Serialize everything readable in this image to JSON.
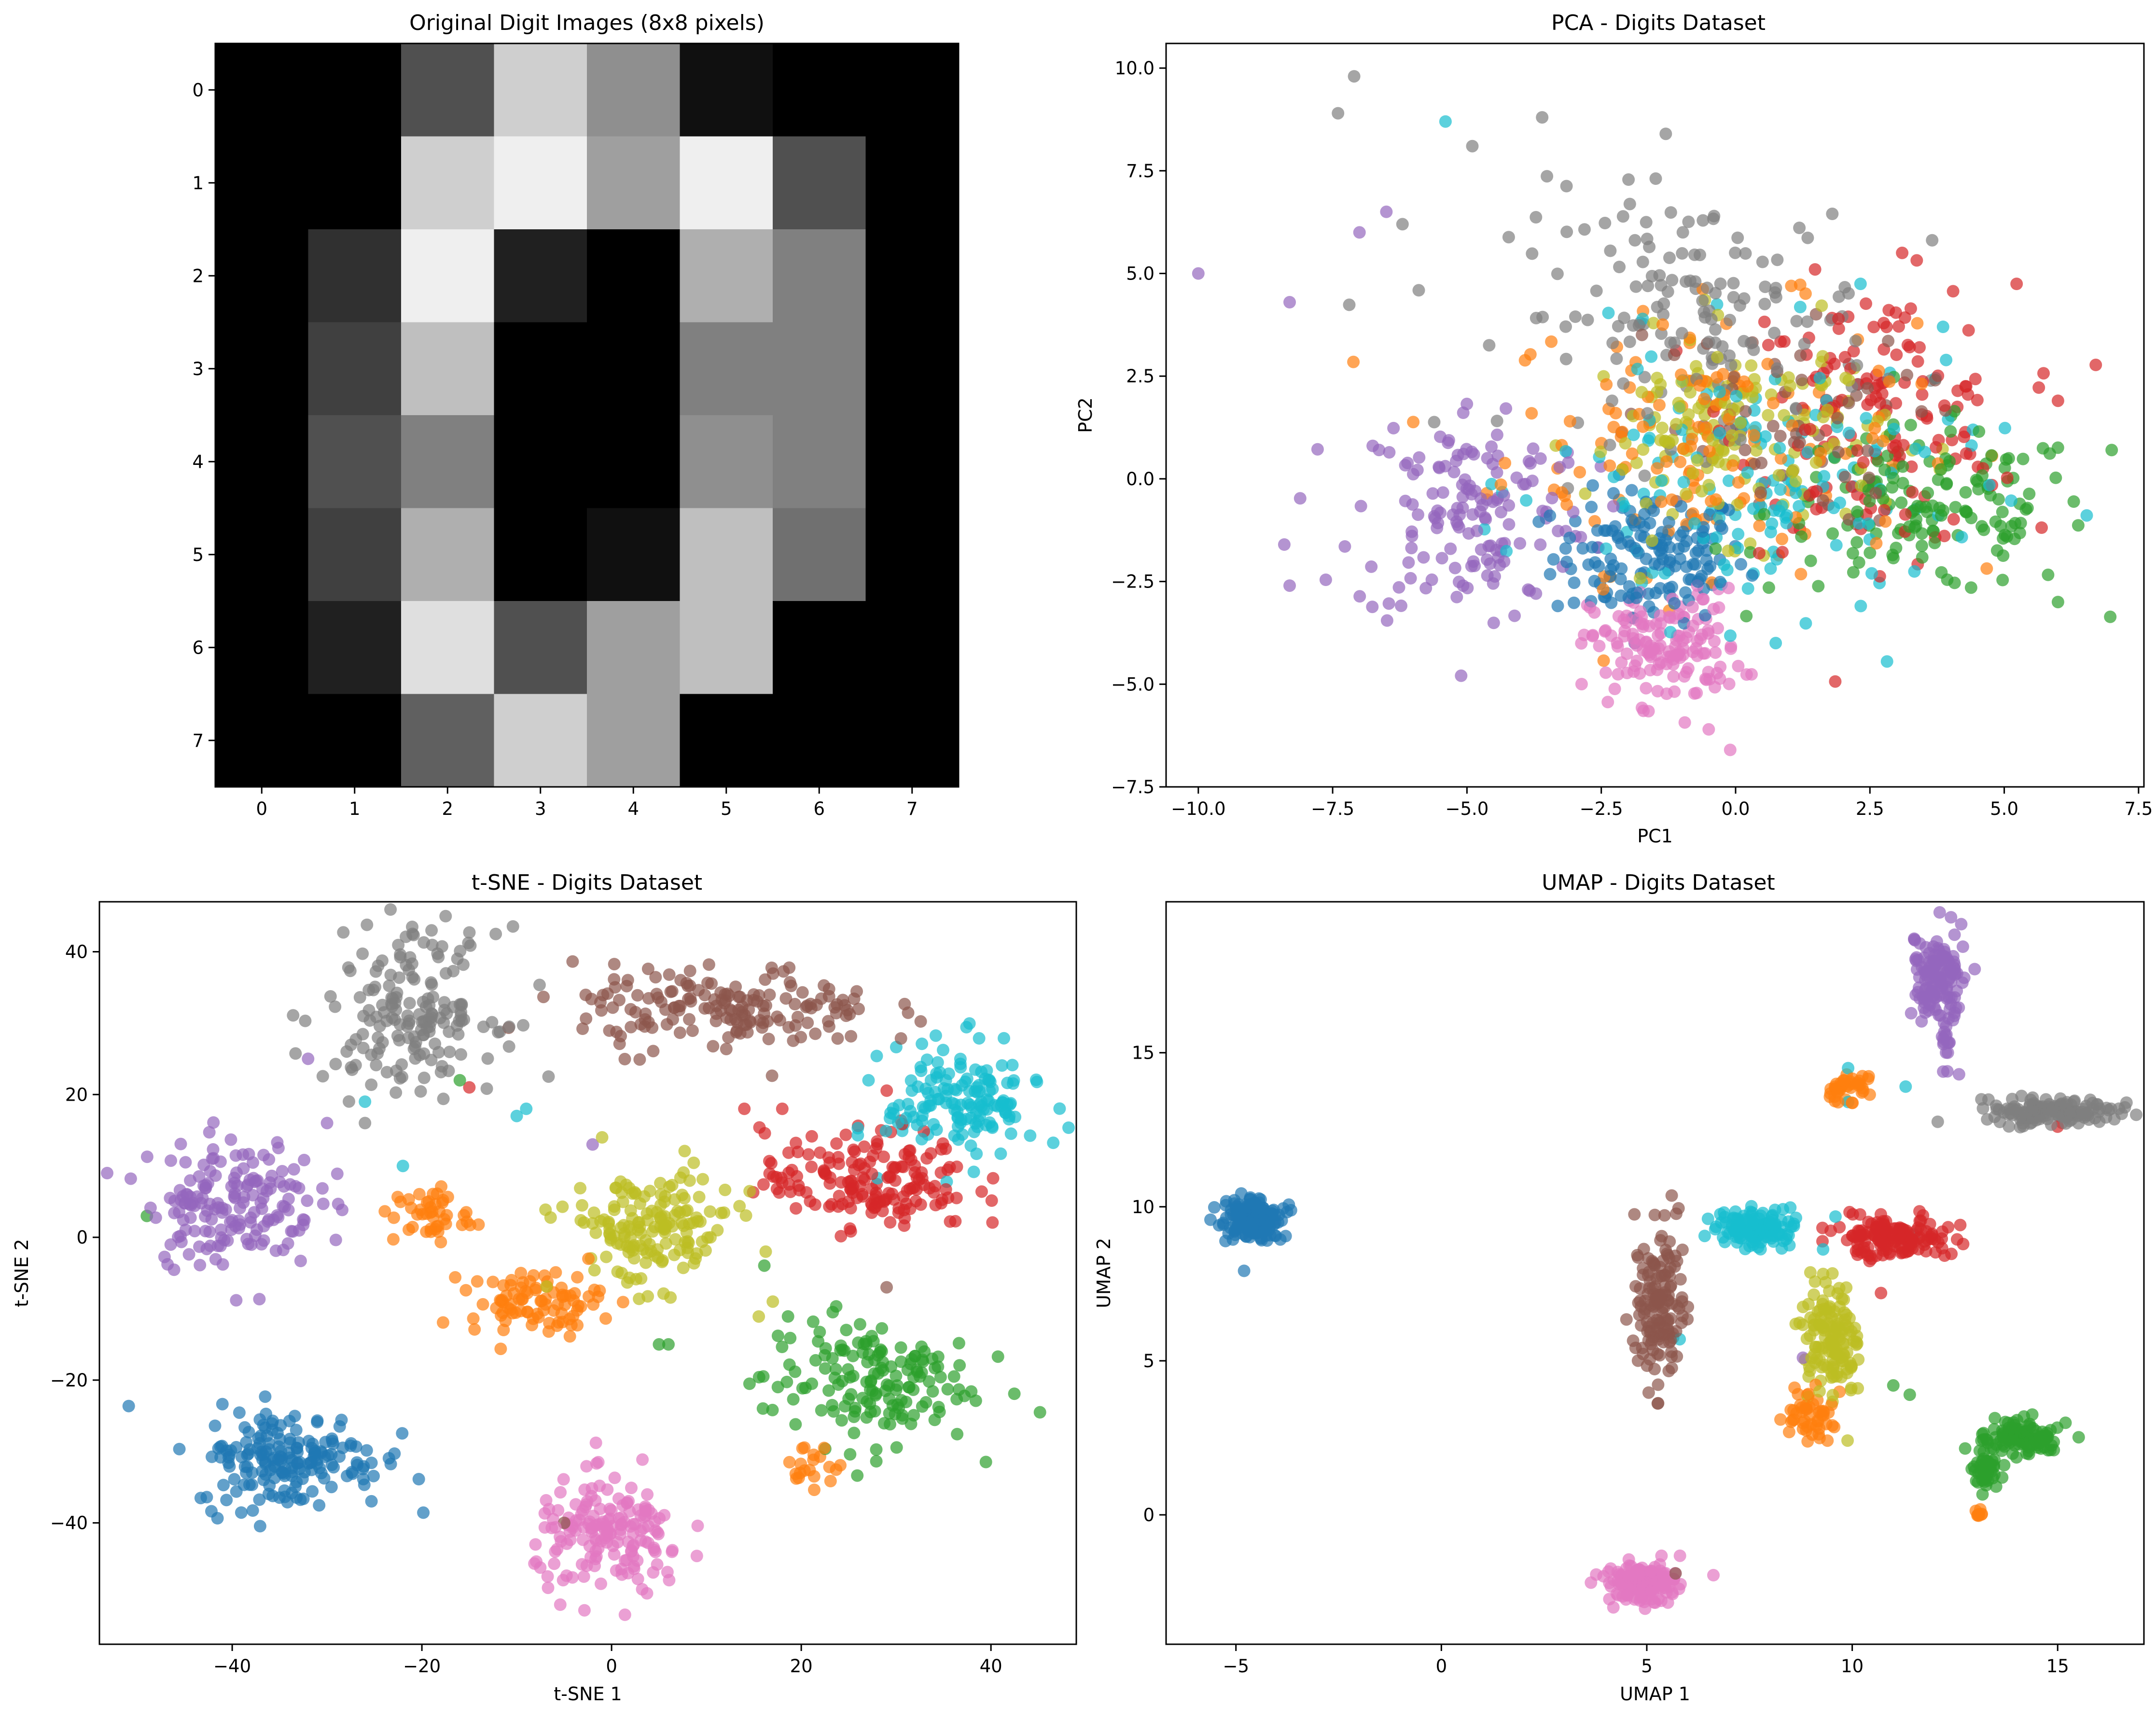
{
  "figure": {
    "palette": [
      "#1f77b4",
      "#ff7f0e",
      "#2ca02c",
      "#d62728",
      "#9467bd",
      "#8c564b",
      "#e377c2",
      "#7f7f7f",
      "#bcbd22",
      "#17becf"
    ],
    "point_alpha": 0.7
  },
  "chart_data": [
    {
      "type": "heatmap",
      "title": "Original Digit Images (8x8 pixels)",
      "colormap": "gray",
      "x_ticks": [
        "0",
        "1",
        "2",
        "3",
        "4",
        "5",
        "6",
        "7"
      ],
      "y_ticks": [
        "0",
        "1",
        "2",
        "3",
        "4",
        "5",
        "6",
        "7"
      ],
      "vmin": 0,
      "vmax": 16,
      "values": [
        [
          0,
          0,
          5,
          13,
          9,
          1,
          0,
          0
        ],
        [
          0,
          0,
          13,
          15,
          10,
          15,
          5,
          0
        ],
        [
          0,
          3,
          15,
          2,
          0,
          11,
          8,
          0
        ],
        [
          0,
          4,
          12,
          0,
          0,
          8,
          8,
          0
        ],
        [
          0,
          5,
          8,
          0,
          0,
          9,
          8,
          0
        ],
        [
          0,
          4,
          11,
          0,
          1,
          12,
          7,
          0
        ],
        [
          0,
          2,
          14,
          5,
          10,
          12,
          0,
          0
        ],
        [
          0,
          0,
          6,
          13,
          10,
          0,
          0,
          0
        ]
      ]
    },
    {
      "type": "scatter",
      "title": "PCA - Digits Dataset",
      "xlabel": "PC1",
      "ylabel": "PC2",
      "xlim": [
        -10.6,
        7.6
      ],
      "ylim": [
        -7.5,
        10.6
      ],
      "x_ticks": [
        -10,
        -7.5,
        -5,
        -2.5,
        0,
        2.5,
        5,
        7.5
      ],
      "x_tick_labels": [
        "−10.0",
        "−7.5",
        "−5.0",
        "−2.5",
        "0.0",
        "2.5",
        "5.0",
        "7.5"
      ],
      "y_ticks": [
        -7.5,
        -5,
        -2.5,
        0,
        2.5,
        5,
        7.5,
        10
      ],
      "y_tick_labels": [
        "−7.5",
        "−5.0",
        "−2.5",
        "0.0",
        "2.5",
        "5.0",
        "7.5",
        "10.0"
      ],
      "clusters": [
        {
          "label": 0,
          "center": [
            -1.6,
            -1.9
          ],
          "spread": [
            0.9,
            0.8
          ],
          "count": 150
        },
        {
          "label": 1,
          "center": [
            -0.5,
            1.0
          ],
          "spread": [
            1.9,
            1.6
          ],
          "count": 150
        },
        {
          "label": 2,
          "center": [
            3.6,
            -0.8
          ],
          "spread": [
            1.5,
            1.0
          ],
          "count": 150
        },
        {
          "label": 3,
          "center": [
            2.6,
            1.5
          ],
          "spread": [
            1.3,
            1.6
          ],
          "count": 150
        },
        {
          "label": 4,
          "center": [
            -4.9,
            -0.8
          ],
          "spread": [
            1.1,
            1.4
          ],
          "count": 150
        },
        {
          "label": 5,
          "center": [
            0.6,
            1.2
          ],
          "spread": [
            1.4,
            1.2
          ],
          "count": 60
        },
        {
          "label": 6,
          "center": [
            -1.3,
            -4.1
          ],
          "spread": [
            0.7,
            0.7
          ],
          "count": 150
        },
        {
          "label": 7,
          "center": [
            -0.8,
            4.0
          ],
          "spread": [
            1.7,
            1.5
          ],
          "count": 150
        },
        {
          "label": 8,
          "center": [
            0.0,
            1.1
          ],
          "spread": [
            1.4,
            1.2
          ],
          "count": 150
        },
        {
          "label": 9,
          "center": [
            0.6,
            -0.2
          ],
          "spread": [
            2.0,
            1.7
          ],
          "count": 150
        }
      ],
      "extra_points": [
        {
          "label": 4,
          "x": -10.0,
          "y": 5.0
        },
        {
          "label": 4,
          "x": -8.3,
          "y": 4.3
        },
        {
          "label": 4,
          "x": -8.4,
          "y": -1.6
        },
        {
          "label": 4,
          "x": -8.3,
          "y": -2.6
        },
        {
          "label": 4,
          "x": -7.0,
          "y": 6.0
        },
        {
          "label": 4,
          "x": -6.5,
          "y": 6.5
        },
        {
          "label": 7,
          "x": -7.4,
          "y": 8.9
        },
        {
          "label": 7,
          "x": -7.1,
          "y": 9.8
        },
        {
          "label": 7,
          "x": -6.2,
          "y": 6.2
        },
        {
          "label": 7,
          "x": -4.9,
          "y": 8.1
        },
        {
          "label": 7,
          "x": -3.6,
          "y": 8.8
        },
        {
          "label": 7,
          "x": -1.3,
          "y": 8.4
        },
        {
          "label": 9,
          "x": -5.4,
          "y": 8.7
        },
        {
          "label": 6,
          "x": -0.1,
          "y": -6.6
        },
        {
          "label": 6,
          "x": -0.5,
          "y": -6.1
        },
        {
          "label": 2,
          "x": 7.0,
          "y": 0.7
        },
        {
          "label": 2,
          "x": 6.0,
          "y": -3.0
        },
        {
          "label": 3,
          "x": 6.0,
          "y": 1.9
        },
        {
          "label": 3,
          "x": 3.1,
          "y": 5.5
        }
      ]
    },
    {
      "type": "scatter",
      "title": "t-SNE - Digits Dataset",
      "xlabel": "t-SNE 1",
      "ylabel": "t-SNE 2",
      "xlim": [
        -54,
        49
      ],
      "ylim": [
        -57,
        47
      ],
      "x_ticks": [
        -40,
        -20,
        0,
        20,
        40
      ],
      "x_tick_labels": [
        "−40",
        "−20",
        "0",
        "20",
        "40"
      ],
      "y_ticks": [
        -40,
        -20,
        0,
        20,
        40
      ],
      "y_tick_labels": [
        "−40",
        "−20",
        "0",
        "20",
        "40"
      ],
      "clusters": [
        {
          "label": 0,
          "center": [
            -34,
            -31
          ],
          "spread": [
            5.0,
            3.5
          ],
          "count": 180
        },
        {
          "label": 1,
          "center": [
            -8,
            -9
          ],
          "spread": [
            3.5,
            2.2
          ],
          "count": 90
        },
        {
          "label": 1,
          "center": [
            -19,
            3
          ],
          "spread": [
            2.0,
            2.0
          ],
          "count": 45
        },
        {
          "label": 1,
          "center": [
            21,
            -32
          ],
          "spread": [
            1.5,
            1.5
          ],
          "count": 20
        },
        {
          "label": 2,
          "center": [
            27,
            -20
          ],
          "spread": [
            5.5,
            4.5
          ],
          "count": 160
        },
        {
          "label": 3,
          "center": [
            27,
            8
          ],
          "spread": [
            5.5,
            3.5
          ],
          "count": 170
        },
        {
          "label": 4,
          "center": [
            -40,
            5
          ],
          "spread": [
            4.5,
            4.5
          ],
          "count": 170
        },
        {
          "label": 5,
          "center": [
            12,
            32
          ],
          "spread": [
            8.0,
            3.0
          ],
          "count": 170
        },
        {
          "label": 6,
          "center": [
            0,
            -42
          ],
          "spread": [
            4.0,
            4.0
          ],
          "count": 170
        },
        {
          "label": 7,
          "center": [
            -21,
            32
          ],
          "spread": [
            4.5,
            5.5
          ],
          "count": 170
        },
        {
          "label": 8,
          "center": [
            4,
            1
          ],
          "spread": [
            4.5,
            4.0
          ],
          "count": 160
        },
        {
          "label": 9,
          "center": [
            37,
            19
          ],
          "spread": [
            4.0,
            4.0
          ],
          "count": 150
        }
      ],
      "extra_points": [
        {
          "label": 4,
          "x": -32,
          "y": 25
        },
        {
          "label": 4,
          "x": -30,
          "y": 16
        },
        {
          "label": 9,
          "x": -26,
          "y": 19
        },
        {
          "label": 9,
          "x": -10,
          "y": 17
        },
        {
          "label": 9,
          "x": -9,
          "y": 18
        },
        {
          "label": 9,
          "x": -22,
          "y": 10
        },
        {
          "label": 2,
          "x": -16,
          "y": 22
        },
        {
          "label": 3,
          "x": -15,
          "y": 21
        },
        {
          "label": 3,
          "x": 14,
          "y": 18
        },
        {
          "label": 3,
          "x": 18,
          "y": 18
        },
        {
          "label": 7,
          "x": -26,
          "y": 16
        },
        {
          "label": 2,
          "x": -49,
          "y": 3
        },
        {
          "label": 5,
          "x": -5,
          "y": -40
        },
        {
          "label": 5,
          "x": 29,
          "y": -7
        },
        {
          "label": 2,
          "x": 5,
          "y": -15
        },
        {
          "label": 2,
          "x": 6,
          "y": -15
        },
        {
          "label": 8,
          "x": 17,
          "y": -9
        },
        {
          "label": 8,
          "x": -1,
          "y": 14
        },
        {
          "label": 4,
          "x": -2,
          "y": 13
        }
      ]
    },
    {
      "type": "scatter",
      "title": "UMAP - Digits Dataset",
      "xlabel": "UMAP 1",
      "ylabel": "UMAP 2",
      "xlim": [
        -6.7,
        17.1
      ],
      "ylim": [
        -4.2,
        19.9
      ],
      "x_ticks": [
        -5,
        0,
        5,
        10,
        15
      ],
      "x_tick_labels": [
        "−5",
        "0",
        "5",
        "10",
        "15"
      ],
      "y_ticks": [
        0,
        5,
        10,
        15
      ],
      "y_tick_labels": [
        "0",
        "5",
        "10",
        "15"
      ],
      "clusters": [
        {
          "label": 0,
          "center": [
            -4.6,
            9.6
          ],
          "spread": [
            0.35,
            0.35
          ],
          "count": 150
        },
        {
          "label": 1,
          "center": [
            9.9,
            13.8
          ],
          "spread": [
            0.25,
            0.2
          ],
          "count": 40
        },
        {
          "label": 1,
          "center": [
            9.0,
            3.3
          ],
          "spread": [
            0.3,
            0.45
          ],
          "count": 50
        },
        {
          "label": 1,
          "center": [
            13.1,
            0.1
          ],
          "spread": [
            0.1,
            0.1
          ],
          "count": 8
        },
        {
          "label": 2,
          "center": [
            14.1,
            2.5
          ],
          "spread": [
            0.45,
            0.3
          ],
          "count": 110
        },
        {
          "label": 2,
          "center": [
            13.3,
            1.4
          ],
          "spread": [
            0.2,
            0.4
          ],
          "count": 40
        },
        {
          "label": 3,
          "center": [
            11.0,
            9.0
          ],
          "spread": [
            0.65,
            0.3
          ],
          "count": 150
        },
        {
          "label": 4,
          "center": [
            12.1,
            17.5
          ],
          "spread": [
            0.35,
            0.8
          ],
          "count": 130
        },
        {
          "label": 4,
          "center": [
            12.3,
            15.4
          ],
          "spread": [
            0.1,
            0.7
          ],
          "count": 20
        },
        {
          "label": 5,
          "center": [
            5.3,
            6.8
          ],
          "spread": [
            0.3,
            1.2
          ],
          "count": 150
        },
        {
          "label": 6,
          "center": [
            4.9,
            -2.2
          ],
          "spread": [
            0.45,
            0.3
          ],
          "count": 150
        },
        {
          "label": 7,
          "center": [
            14.8,
            13.1
          ],
          "spread": [
            0.8,
            0.2
          ],
          "count": 150
        },
        {
          "label": 8,
          "center": [
            9.5,
            5.5
          ],
          "spread": [
            0.35,
            1.0
          ],
          "count": 140
        },
        {
          "label": 9,
          "center": [
            7.7,
            9.3
          ],
          "spread": [
            0.5,
            0.3
          ],
          "count": 140
        }
      ],
      "extra_points": [
        {
          "label": 9,
          "x": 9.9,
          "y": 14.5
        },
        {
          "label": 9,
          "x": 9.9,
          "y": 13.4
        },
        {
          "label": 9,
          "x": 11.3,
          "y": 13.9
        },
        {
          "label": 9,
          "x": 5.8,
          "y": 5.7
        },
        {
          "label": 9,
          "x": 11.5,
          "y": 9.1
        },
        {
          "label": 3,
          "x": 10.7,
          "y": 7.2
        },
        {
          "label": 3,
          "x": 15.0,
          "y": 12.6
        },
        {
          "label": 2,
          "x": 11.0,
          "y": 4.2
        },
        {
          "label": 2,
          "x": 11.4,
          "y": 3.9
        },
        {
          "label": 4,
          "x": 8.8,
          "y": 5.1
        },
        {
          "label": 5,
          "x": 5.7,
          "y": -1.9
        },
        {
          "label": 4,
          "x": 12.6,
          "y": 14.3
        }
      ]
    }
  ]
}
